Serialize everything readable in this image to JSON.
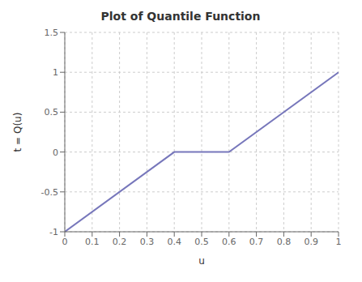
{
  "chart_data": {
    "type": "line",
    "title": "Plot of Quantile Function",
    "xlabel": "u",
    "ylabel": "t = Q(u)",
    "x": [
      0,
      0.4,
      0.6,
      1.0
    ],
    "values": [
      -1,
      0,
      0,
      1
    ],
    "color": "#7777bb",
    "xlim": [
      0,
      1
    ],
    "ylim": [
      -1,
      1.5
    ],
    "xticks": [
      0,
      0.1,
      0.2,
      0.3,
      0.4,
      0.5,
      0.6,
      0.7,
      0.8,
      0.9,
      1.0
    ],
    "yticks": [
      -1,
      -0.5,
      0,
      0.5,
      1,
      1.5
    ],
    "grid": true
  }
}
